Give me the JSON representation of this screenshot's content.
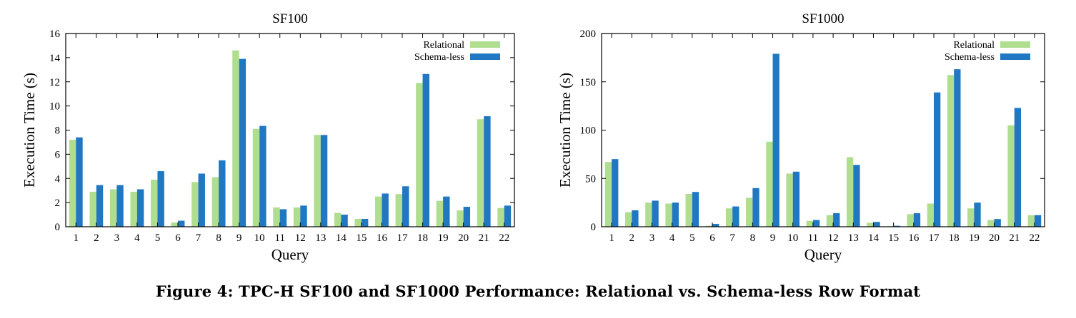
{
  "caption": "Figure 4: TPC-H SF100 and SF1000 Performance: Relational vs. Schema-less Row Format",
  "colors": {
    "relational": "#b0de8f",
    "schemaless": "#1f78c1"
  },
  "chart_data": [
    {
      "type": "bar",
      "title": "SF100",
      "xlabel": "Query",
      "ylabel": "Execution Time (s)",
      "ylim": [
        0,
        16
      ],
      "yticks": [
        0,
        2,
        4,
        6,
        8,
        10,
        12,
        14,
        16
      ],
      "grid": false,
      "legend_position": "top-right",
      "categories": [
        "1",
        "2",
        "3",
        "4",
        "5",
        "6",
        "7",
        "8",
        "9",
        "10",
        "11",
        "12",
        "13",
        "14",
        "15",
        "16",
        "17",
        "18",
        "19",
        "20",
        "21",
        "22"
      ],
      "series": [
        {
          "name": "Relational",
          "values": [
            7.2,
            2.9,
            3.1,
            2.9,
            3.9,
            0.35,
            3.7,
            4.1,
            14.6,
            8.1,
            1.6,
            1.6,
            7.6,
            1.15,
            0.65,
            2.5,
            2.7,
            11.9,
            2.15,
            1.35,
            8.9,
            1.55
          ]
        },
        {
          "name": "Schema-less",
          "values": [
            7.4,
            3.45,
            3.45,
            3.1,
            4.6,
            0.5,
            4.4,
            5.5,
            13.9,
            8.35,
            1.45,
            1.75,
            7.6,
            1.0,
            0.65,
            2.75,
            3.35,
            12.65,
            2.5,
            1.65,
            9.15,
            1.75
          ]
        }
      ]
    },
    {
      "type": "bar",
      "title": "SF1000",
      "xlabel": "Query",
      "ylabel": "Execution Time (s)",
      "ylim": [
        0,
        200
      ],
      "yticks": [
        0,
        50,
        100,
        150,
        200
      ],
      "grid": false,
      "legend_position": "top-right",
      "categories": [
        "1",
        "2",
        "3",
        "4",
        "5",
        "6",
        "7",
        "8",
        "9",
        "10",
        "11",
        "12",
        "13",
        "14",
        "15",
        "16",
        "17",
        "18",
        "19",
        "20",
        "21",
        "22"
      ],
      "series": [
        {
          "name": "Relational",
          "values": [
            67,
            15,
            25,
            24,
            34,
            1,
            19,
            30,
            88,
            55,
            6,
            12,
            72,
            4,
            0.5,
            13,
            24,
            157,
            19,
            7,
            105,
            12
          ]
        },
        {
          "name": "Schema-less",
          "values": [
            70,
            17,
            27,
            25,
            36,
            3,
            21,
            40,
            179,
            57,
            7,
            14,
            64,
            5,
            1,
            14,
            139,
            163,
            25,
            8,
            123,
            12
          ]
        }
      ]
    }
  ]
}
